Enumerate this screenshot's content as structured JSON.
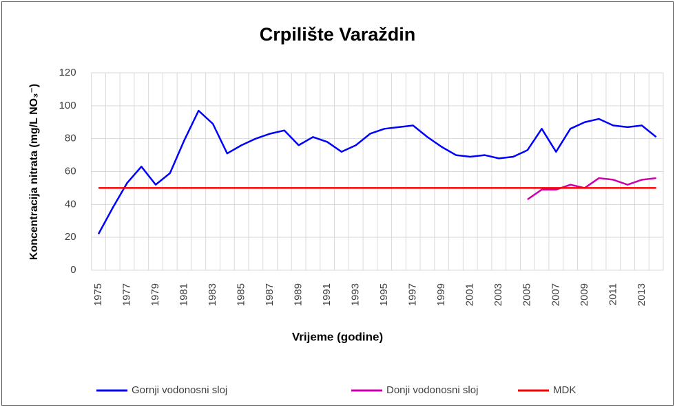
{
  "chart_data": {
    "type": "line",
    "title": "Crpilište Varaždin",
    "x_label": "Vrijeme (godine)",
    "y_label": "Koncentracija  nitrata (mg/L NO₃⁻)",
    "categories": [
      "1975",
      null,
      "1977",
      null,
      "1979",
      null,
      "1981",
      null,
      "1983",
      null,
      "1985",
      null,
      "1987",
      null,
      "1989",
      null,
      "1991",
      null,
      "1993",
      null,
      "1995",
      null,
      "1997",
      null,
      "1999",
      null,
      "2001",
      null,
      "2003",
      null,
      "2005",
      null,
      "2007",
      null,
      "2009",
      null,
      "2011",
      null,
      "2013",
      null
    ],
    "series": [
      {
        "name": "Gornji vodonosni sloj",
        "color": "#0000ff",
        "values": [
          22,
          38,
          53,
          63,
          52,
          59,
          79,
          97,
          89,
          71,
          76,
          80,
          83,
          85,
          76,
          81,
          78,
          72,
          76,
          83,
          86,
          87,
          88,
          81,
          75,
          70,
          69,
          70,
          68,
          69,
          73,
          86,
          72,
          86,
          90,
          92,
          88,
          87,
          88,
          81
        ]
      },
      {
        "name": "Donji vodonosni sloj",
        "color": "#cc00aa",
        "values": [
          null,
          null,
          null,
          null,
          null,
          null,
          null,
          null,
          null,
          null,
          null,
          null,
          null,
          null,
          null,
          null,
          null,
          null,
          null,
          null,
          null,
          null,
          null,
          null,
          null,
          null,
          null,
          null,
          null,
          null,
          43,
          49,
          49,
          52,
          50,
          56,
          55,
          52,
          55,
          56
        ]
      },
      {
        "name": "MDK",
        "color": "#ff0000",
        "values": [
          50,
          50,
          50,
          50,
          50,
          50,
          50,
          50,
          50,
          50,
          50,
          50,
          50,
          50,
          50,
          50,
          50,
          50,
          50,
          50,
          50,
          50,
          50,
          50,
          50,
          50,
          50,
          50,
          50,
          50,
          50,
          50,
          50,
          50,
          50,
          50,
          50,
          50,
          50,
          50
        ]
      }
    ],
    "ylim": [
      0,
      120
    ],
    "yticks": [
      0,
      20,
      40,
      60,
      80,
      100,
      120
    ],
    "grid": true,
    "legend": "bottom"
  }
}
